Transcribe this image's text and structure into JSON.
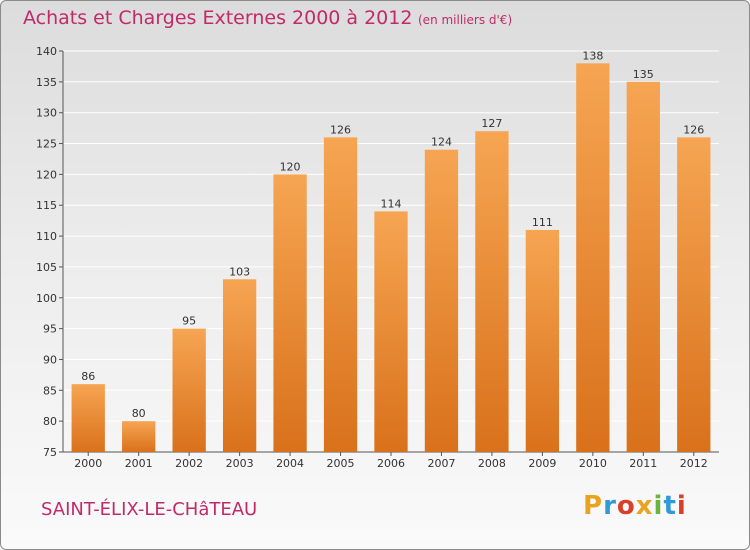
{
  "header": {
    "title": "Achats et Charges Externes 2000 à 2012",
    "subtitle": "(en milliers d'€)"
  },
  "footer": {
    "commune": "SAINT-ÉLIX-LE-CHâTEAU",
    "logo_text": "Proxiti",
    "logo_colors": [
      "#e8a320",
      "#2f9ad8",
      "#d8402a",
      "#e8a320",
      "#6db33f",
      "#2f9ad8",
      "#d8402a"
    ]
  },
  "colors": {
    "bar_light": "#f6a552",
    "bar_dark": "#d9711b",
    "title": "#c02a6a",
    "grid": "#ffffff"
  },
  "chart_data": {
    "type": "bar",
    "categories": [
      "2000",
      "2001",
      "2002",
      "2003",
      "2004",
      "2005",
      "2006",
      "2007",
      "2008",
      "2009",
      "2010",
      "2011",
      "2012"
    ],
    "values": [
      86,
      80,
      95,
      103,
      120,
      126,
      114,
      124,
      127,
      111,
      138,
      135,
      126
    ],
    "ylim": [
      75,
      140
    ],
    "yticks": [
      75,
      80,
      85,
      90,
      95,
      100,
      105,
      110,
      115,
      120,
      125,
      130,
      135,
      140
    ],
    "grid": true,
    "data_labels": true
  }
}
